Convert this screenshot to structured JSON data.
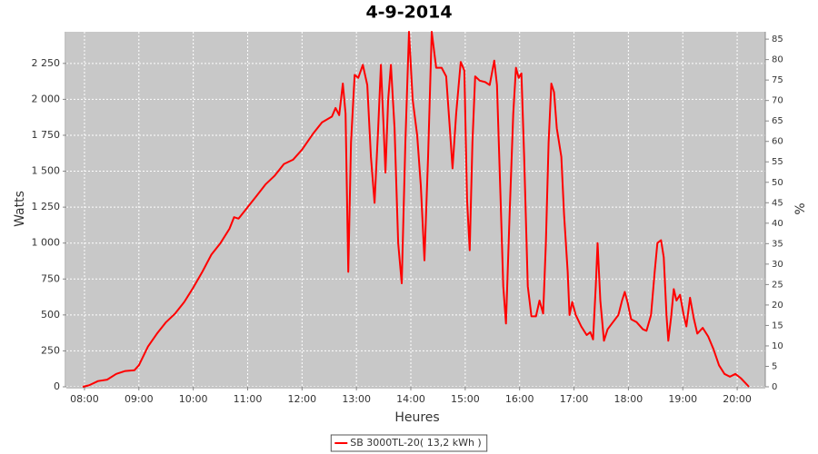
{
  "chart_data": {
    "type": "line",
    "title": "4-9-2014",
    "x_label": "Heures",
    "y_label": "Watts",
    "y2_label": "%",
    "x": [
      "07:58",
      "08:05",
      "08:15",
      "08:25",
      "08:35",
      "08:45",
      "08:55",
      "09:00",
      "09:10",
      "09:20",
      "09:30",
      "09:40",
      "09:50",
      "10:00",
      "10:10",
      "10:20",
      "10:30",
      "10:40",
      "10:45",
      "10:50",
      "11:00",
      "11:10",
      "11:20",
      "11:30",
      "11:40",
      "11:50",
      "12:00",
      "12:12",
      "12:22",
      "12:33",
      "12:37",
      "12:41",
      "12:45",
      "12:48",
      "12:51",
      "12:54",
      "12:58",
      "13:02",
      "13:07",
      "13:12",
      "13:16",
      "13:20",
      "13:24",
      "13:27",
      "13:30",
      "13:32",
      "13:35",
      "13:38",
      "13:42",
      "13:46",
      "13:50",
      "13:54",
      "13:58",
      "14:02",
      "14:07",
      "14:11",
      "14:15",
      "14:19",
      "14:23",
      "14:28",
      "14:34",
      "14:39",
      "14:43",
      "14:46",
      "14:50",
      "14:55",
      "14:59",
      "15:02",
      "15:05",
      "15:08",
      "15:11",
      "15:16",
      "15:22",
      "15:27",
      "15:32",
      "15:35",
      "15:39",
      "15:42",
      "15:45",
      "15:49",
      "15:53",
      "15:56",
      "15:59",
      "16:02",
      "16:05",
      "16:09",
      "16:13",
      "16:18",
      "16:22",
      "16:26",
      "16:29",
      "16:32",
      "16:35",
      "16:38",
      "16:41",
      "16:46",
      "16:49",
      "16:53",
      "16:55",
      "16:58",
      "17:02",
      "17:08",
      "17:14",
      "17:18",
      "17:21",
      "17:24",
      "17:26",
      "17:29",
      "17:33",
      "17:37",
      "17:43",
      "17:49",
      "17:53",
      "17:56",
      "17:59",
      "18:03",
      "18:09",
      "18:16",
      "18:20",
      "18:25",
      "18:29",
      "18:32",
      "18:36",
      "18:39",
      "18:42",
      "18:44",
      "18:47",
      "18:50",
      "18:53",
      "18:57",
      "19:01",
      "19:04",
      "19:08",
      "19:12",
      "19:16",
      "19:22",
      "19:28",
      "19:34",
      "19:40",
      "19:46",
      "19:52",
      "19:58",
      "20:04",
      "20:10",
      "20:13"
    ],
    "series": [
      {
        "name": "SB 3000TL-20( 13,2 kWh )",
        "color": "#ff0000",
        "values": [
          0,
          10,
          40,
          50,
          90,
          110,
          115,
          150,
          280,
          370,
          450,
          510,
          590,
          690,
          800,
          920,
          1000,
          1100,
          1180,
          1170,
          1250,
          1330,
          1410,
          1470,
          1550,
          1580,
          1650,
          1760,
          1840,
          1880,
          1940,
          1890,
          2110,
          1900,
          800,
          1700,
          2170,
          2150,
          2240,
          2100,
          1600,
          1280,
          1800,
          2240,
          1800,
          1490,
          2000,
          2240,
          1800,
          1000,
          720,
          1700,
          2470,
          2000,
          1750,
          1400,
          880,
          1600,
          2470,
          2220,
          2220,
          2160,
          1800,
          1520,
          1900,
          2260,
          2200,
          1300,
          950,
          1700,
          2160,
          2130,
          2120,
          2100,
          2270,
          2100,
          1300,
          700,
          440,
          1200,
          1900,
          2220,
          2150,
          2180,
          1600,
          700,
          490,
          490,
          600,
          510,
          1000,
          1700,
          2110,
          2050,
          1800,
          1600,
          1200,
          800,
          500,
          590,
          500,
          420,
          360,
          380,
          330,
          700,
          1000,
          600,
          320,
          400,
          450,
          500,
          600,
          660,
          590,
          470,
          450,
          400,
          390,
          500,
          800,
          1000,
          1020,
          900,
          500,
          320,
          480,
          680,
          600,
          640,
          500,
          420,
          620,
          480,
          370,
          410,
          350,
          260,
          150,
          90,
          70,
          90,
          60,
          20,
          0
        ]
      }
    ],
    "xlim": [
      "07:40",
      "20:31"
    ],
    "xticks": [
      "08:00",
      "09:00",
      "10:00",
      "11:00",
      "12:00",
      "13:00",
      "14:00",
      "15:00",
      "16:00",
      "17:00",
      "18:00",
      "19:00",
      "20:00"
    ],
    "ylim": [
      0,
      2470
    ],
    "yticks": [
      0,
      250,
      500,
      750,
      {
        "value": 1000,
        "label": "1 000"
      },
      {
        "value": 1250,
        "label": "1 250"
      },
      {
        "value": 1500,
        "label": "1 500"
      },
      {
        "value": 1750,
        "label": "1 750"
      },
      {
        "value": 2000,
        "label": "2 000"
      },
      {
        "value": 2250,
        "label": "2 250"
      }
    ],
    "y2lim": [
      0,
      86.8
    ],
    "y2ticks": [
      0,
      5,
      10,
      15,
      20,
      25,
      30,
      35,
      40,
      45,
      50,
      55,
      60,
      65,
      70,
      75,
      80,
      85
    ],
    "grid": true,
    "legend": "bottom"
  }
}
